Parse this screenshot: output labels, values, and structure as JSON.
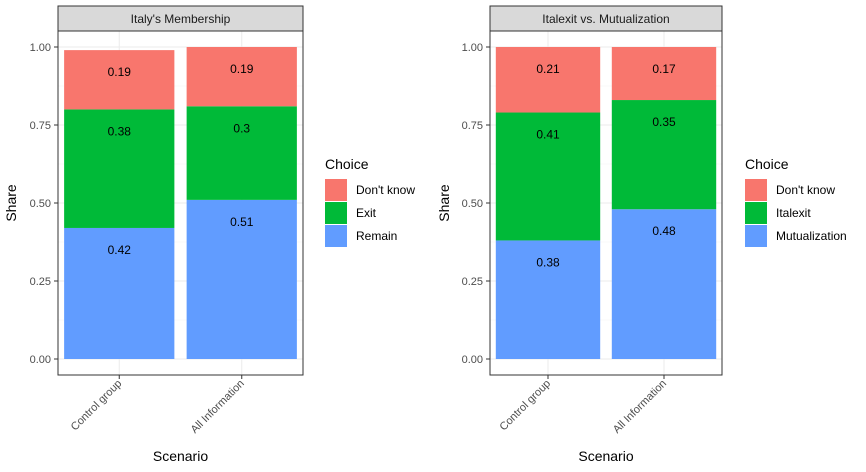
{
  "chart_data": [
    {
      "type": "bar",
      "stacked": true,
      "title": "Italy's Membership",
      "xlabel": "Scenario",
      "ylabel": "Share",
      "ylim": [
        0,
        1
      ],
      "yticks": [
        "0.00",
        "0.25",
        "0.50",
        "0.75",
        "1.00"
      ],
      "categories": [
        "Control group",
        "All Information"
      ],
      "legend_title": "Choice",
      "legend_position": "right",
      "series": [
        {
          "name": "Remain",
          "color": "#619CFF",
          "values": [
            0.42,
            0.51
          ],
          "labels": [
            "0.42",
            "0.51"
          ]
        },
        {
          "name": "Exit",
          "color": "#00BA38",
          "values": [
            0.38,
            0.3
          ],
          "labels": [
            "0.38",
            "0.3"
          ]
        },
        {
          "name": "Don't know",
          "color": "#F8766D",
          "values": [
            0.19,
            0.19
          ],
          "labels": [
            "0.19",
            "0.19"
          ]
        }
      ]
    },
    {
      "type": "bar",
      "stacked": true,
      "title": "Italexit vs. Mutualization",
      "xlabel": "Scenario",
      "ylabel": "Share",
      "ylim": [
        0,
        1
      ],
      "yticks": [
        "0.00",
        "0.25",
        "0.50",
        "0.75",
        "1.00"
      ],
      "categories": [
        "Control group",
        "All Information"
      ],
      "legend_title": "Choice",
      "legend_position": "right",
      "series": [
        {
          "name": "Mutualization",
          "color": "#619CFF",
          "values": [
            0.38,
            0.48
          ],
          "labels": [
            "0.38",
            "0.48"
          ]
        },
        {
          "name": "Italexit",
          "color": "#00BA38",
          "values": [
            0.41,
            0.35
          ],
          "labels": [
            "0.41",
            "0.35"
          ]
        },
        {
          "name": "Don't know",
          "color": "#F8766D",
          "values": [
            0.21,
            0.17
          ],
          "labels": [
            "0.21",
            "0.17"
          ]
        }
      ]
    }
  ]
}
